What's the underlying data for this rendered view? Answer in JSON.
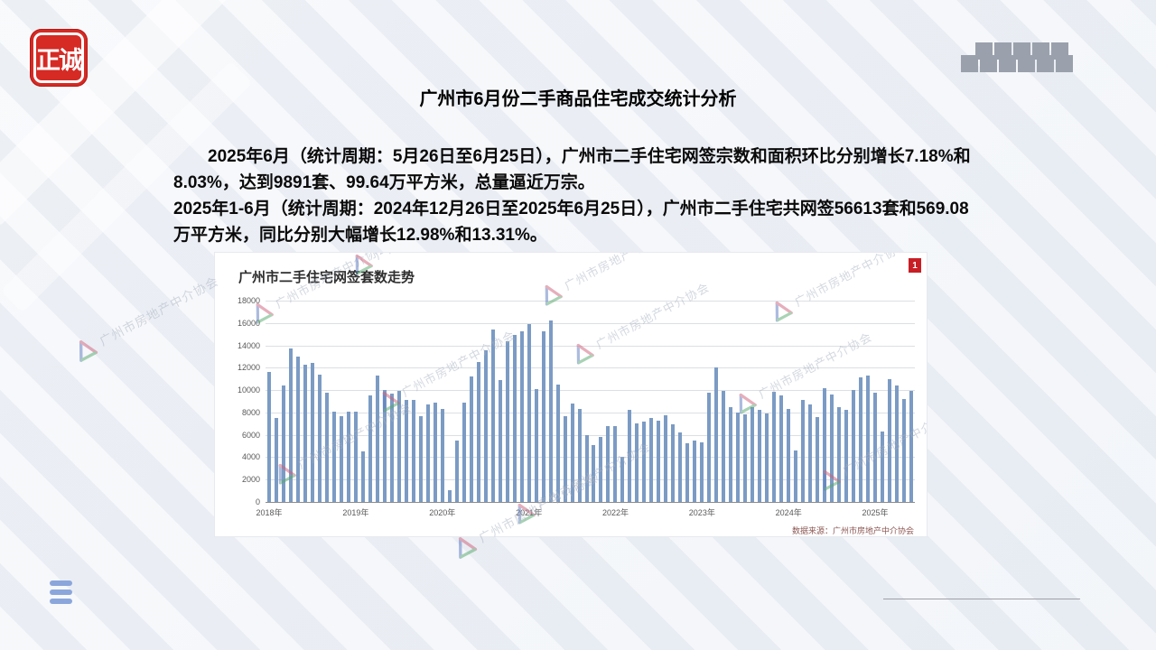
{
  "slide": {
    "logo_text": "正诚",
    "title": "广州市6月份二手商品住宅成交统计分析",
    "paragraph1": "2025年6月（统计周期：5月26日至6月25日），广州市二手住宅网签宗数和面积环比分别增长7.18%和8.03%，达到9891套、99.64万平方米，总量逼近万宗。",
    "paragraph2": "2025年1-6月（统计周期：2024年12月26日至2025年6月25日），广州市二手住宅共网签56613套和569.08万平方米，同比分别大幅增长12.98%和13.31%。",
    "page_badge": "1"
  },
  "chart_data": {
    "type": "bar",
    "title": "广州市二手住宅网签套数走势",
    "source_note": "数据来源：广州市房地产中介协会",
    "watermark_text": "广州市房地产中介协会",
    "x_start": "2018-01",
    "x_end": "2025-06",
    "x_year_labels": [
      "2018年",
      "2019年",
      "2020年",
      "2021年",
      "2022年",
      "2023年",
      "2024年",
      "2025年"
    ],
    "ylim": [
      0,
      18000
    ],
    "ytick_step": 2000,
    "legend": "none",
    "grid": "horizontal",
    "series": [
      {
        "name": "二手住宅网签套数",
        "values": [
          11600,
          7500,
          10400,
          13700,
          13000,
          12300,
          12400,
          11350,
          9800,
          8100,
          7700,
          8100,
          8100,
          4550,
          9550,
          11300,
          10050,
          9650,
          9900,
          9100,
          9100,
          7650,
          8700,
          8900,
          8350,
          1050,
          5450,
          8900,
          11250,
          12550,
          13600,
          15400,
          10900,
          14350,
          14950,
          15250,
          15900,
          10100,
          15250,
          16200,
          10500,
          7700,
          8800,
          8350,
          6000,
          5050,
          5850,
          6750,
          6800,
          4000,
          8200,
          7050,
          7150,
          7500,
          7300,
          7750,
          6950,
          6250,
          5250,
          5500,
          5300,
          9750,
          12050,
          9950,
          8500,
          8000,
          7850,
          8450,
          8200,
          7950,
          9850,
          9550,
          8350,
          4600,
          9100,
          8750,
          7600,
          10200,
          9600,
          8500,
          8200,
          10000,
          11150,
          11300,
          9800,
          6300,
          11000,
          10400,
          9228,
          9891
        ]
      }
    ],
    "bar_color": "#7b9bc4"
  },
  "colors": {
    "logo_red": "#d62a24",
    "badge_red": "#c81e25",
    "bar_blue": "#7b9bc4",
    "hamburger_blue": "#8ba6db",
    "checker_gray": "#9aa1ac",
    "background": "#eef1f6"
  }
}
